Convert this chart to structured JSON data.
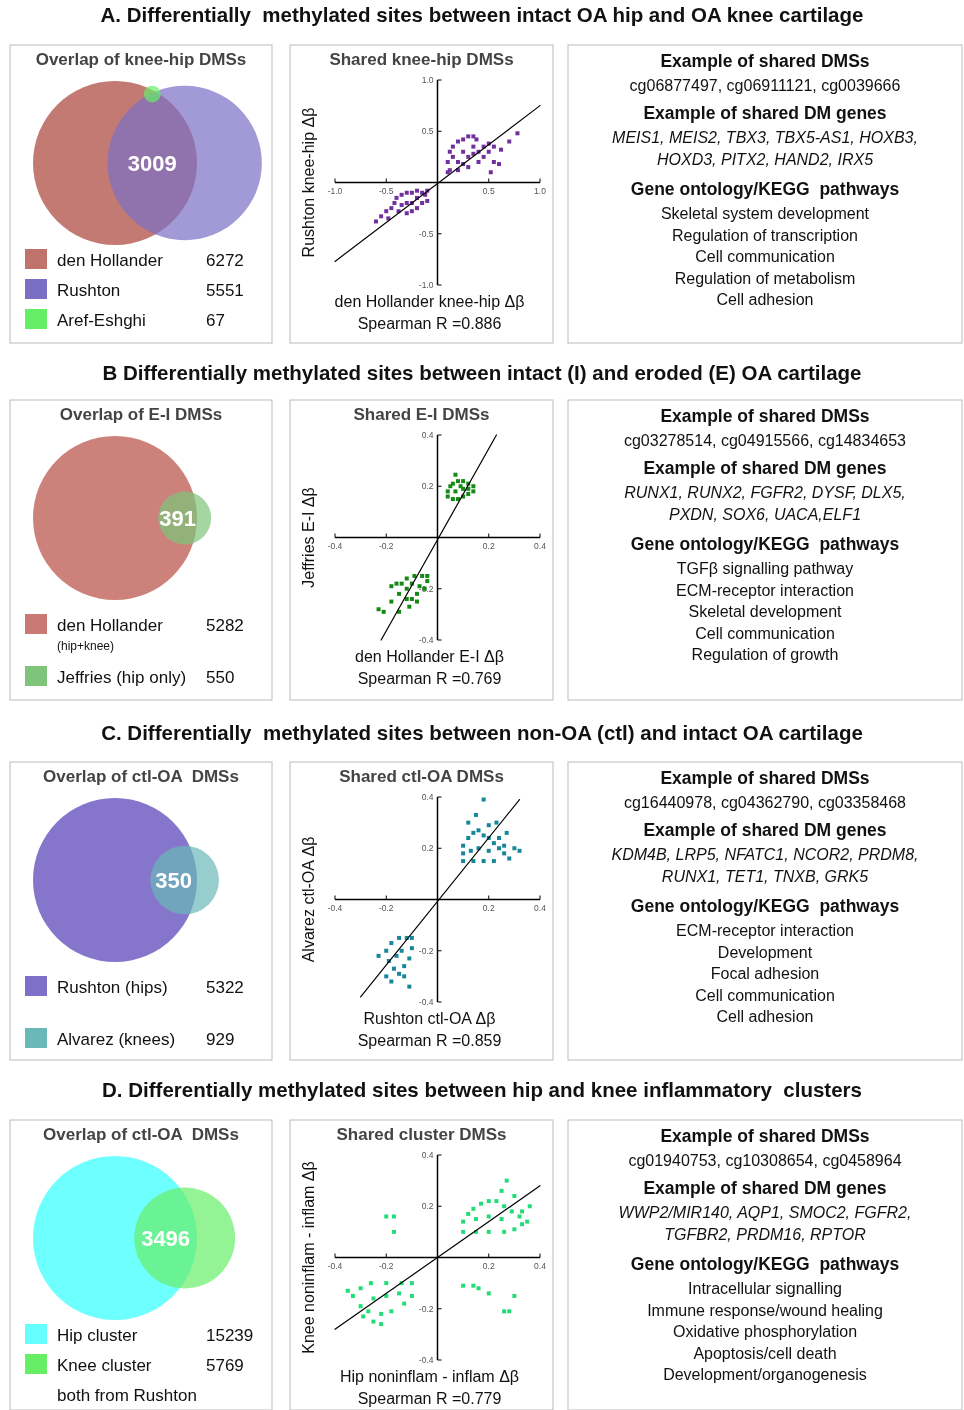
{
  "chart_data": [
    {
      "type": "other",
      "title": "A. Differentially  methylated sites between intact OA hip and OA knee cartilage"
    },
    {
      "type": "other",
      "title": "Overlap of knee-hip DMSs",
      "categories": [
        "den Hollander",
        "Rushton",
        "Aref-Eshghi"
      ],
      "values": [
        6272,
        5551,
        67
      ],
      "data_labels": true,
      "colors": [
        "#c0736b",
        "#7b6fc4",
        "#66ee66"
      ],
      "annotations": [
        "3009"
      ]
    },
    {
      "type": "scatter",
      "title": "Shared knee-hip DMSs",
      "xlabel": "den Hollander knee-hip Δβ",
      "ylabel": "Rushton knee-hip Δβ",
      "annotations": [
        "Spearman R =0.886"
      ],
      "xlim": [
        -1,
        1
      ],
      "ylim": [
        -1,
        1
      ],
      "xticks": [
        {
          "value": -1,
          "label": "-1.0"
        },
        -0.5,
        0.5,
        {
          "value": 1,
          "label": "1.0"
        }
      ],
      "yticks": [
        {
          "value": -1,
          "label": "-1.0"
        },
        -0.5,
        0.5,
        {
          "value": 1,
          "label": "1.0"
        }
      ],
      "marker": "square",
      "series": [
        {
          "color": "#7030a0",
          "x": [
            0.12,
            0.1,
            0.12,
            0.15,
            0.2,
            0.25,
            0.3,
            0.35,
            0.38,
            0.15,
            0.2,
            0.2,
            0.25,
            0.3,
            0.3,
            0.35,
            0.4,
            0.45,
            0.45,
            0.5,
            0.5,
            0.55,
            0.55,
            0.6,
            0.52,
            0.62,
            0.7,
            0.78,
            0.4,
            0.1,
            0.25,
            0.35,
            -0.1,
            -0.15,
            -0.2,
            -0.25,
            -0.3,
            -0.35,
            -0.4,
            -0.42,
            -0.45,
            -0.38,
            -0.3,
            -0.25,
            -0.2,
            -0.15,
            -0.1,
            -0.12,
            -0.2,
            -0.3,
            -0.35,
            -0.5,
            -0.55,
            -0.6,
            -0.48,
            -0.25
          ],
          "values": [
            0.12,
            0.2,
            0.3,
            0.35,
            0.4,
            0.42,
            0.45,
            0.45,
            0.42,
            0.25,
            0.2,
            0.12,
            0.3,
            0.25,
            0.15,
            0.35,
            0.3,
            0.35,
            0.25,
            0.38,
            0.3,
            0.35,
            0.2,
            0.18,
            0.1,
            0.32,
            0.4,
            0.48,
            0.2,
            0.1,
            0.18,
            0.28,
            -0.08,
            -0.1,
            -0.08,
            -0.1,
            -0.1,
            -0.12,
            -0.15,
            -0.2,
            -0.25,
            -0.28,
            -0.3,
            -0.28,
            -0.25,
            -0.2,
            -0.18,
            -0.12,
            -0.15,
            -0.2,
            -0.22,
            -0.28,
            -0.33,
            -0.38,
            -0.35,
            -0.2
          ]
        },
        {
          "type": "line",
          "marker": "none",
          "color": "#000000",
          "x": [
            -1,
            1
          ],
          "values": [
            -0.77,
            0.75
          ]
        }
      ]
    },
    {
      "type": "other",
      "title": "Example of shared DMSs",
      "annotations": [
        "cg06877497, cg06911121, cg0039666"
      ]
    },
    {
      "type": "other",
      "title": "Example of shared DM genes",
      "annotations": [
        "MEIS1, MEIS2, TBX3, TBX5-AS1, HOXB3,",
        "HOXD3, PITX2, HAND2, IRX5"
      ]
    },
    {
      "type": "other",
      "title": "Gene ontology/KEGG  pathways",
      "annotations": [
        "Skeletal system development",
        "Regulation of transcription",
        "Cell communication",
        "Regulation of metabolism",
        "Cell adhesion"
      ]
    },
    {
      "type": "other",
      "title": "B Differentially methylated sites between intact (I) and eroded (E) OA cartilage"
    },
    {
      "type": "other",
      "title": "Overlap of E-I DMSs",
      "categories": [
        "den Hollander\n(hip+knee)",
        "Jeffries (hip only)"
      ],
      "values": [
        5282,
        550
      ],
      "data_labels": true,
      "colors": [
        "#c97b73",
        "#7ec47a"
      ],
      "annotations": [
        "391"
      ]
    },
    {
      "type": "scatter",
      "title": "Shared E-I DMSs",
      "xlabel": "den Hollander E-I Δβ",
      "ylabel": "Jeffries E-I Δβ",
      "annotations": [
        "Spearman R =0.769"
      ],
      "xlim": [
        -0.4,
        0.4
      ],
      "ylim": [
        -0.4,
        0.4
      ],
      "xticks": [
        -0.4,
        -0.2,
        0.2,
        0.4
      ],
      "yticks": [
        -0.4,
        -0.2,
        0.2,
        0.4
      ],
      "marker": "square",
      "series": [
        {
          "color": "#138a13",
          "x": [
            0.04,
            0.04,
            0.05,
            0.06,
            0.08,
            0.1,
            0.12,
            0.14,
            0.14,
            0.12,
            0.1,
            0.08,
            0.06,
            0.07,
            0.1,
            0.12,
            0.07,
            0.09,
            -0.04,
            -0.06,
            -0.09,
            -0.12,
            -0.14,
            -0.16,
            -0.18,
            -0.15,
            -0.12,
            -0.1,
            -0.08,
            -0.05,
            -0.04,
            -0.1,
            -0.12,
            -0.07,
            -0.11,
            -0.15,
            -0.18,
            -0.21,
            -0.23,
            -0.08
          ],
          "values": [
            0.16,
            0.18,
            0.2,
            0.21,
            0.22,
            0.22,
            0.21,
            0.2,
            0.18,
            0.17,
            0.16,
            0.15,
            0.15,
            0.18,
            0.19,
            0.19,
            0.245,
            0.2,
            -0.15,
            -0.15,
            -0.15,
            -0.16,
            -0.18,
            -0.18,
            -0.19,
            -0.22,
            -0.24,
            -0.24,
            -0.22,
            -0.2,
            -0.17,
            -0.18,
            -0.2,
            -0.19,
            -0.27,
            -0.29,
            -0.25,
            -0.29,
            -0.28,
            -0.25
          ]
        },
        {
          "type": "line",
          "marker": "none",
          "color": "#000000",
          "x": [
            -0.22,
            0.23
          ],
          "values": [
            -0.4,
            0.4
          ]
        }
      ]
    },
    {
      "type": "other",
      "title": "Example of shared DMSs",
      "annotations": [
        "cg03278514, cg04915566, cg14834653"
      ]
    },
    {
      "type": "other",
      "title": "Example of shared DM genes",
      "annotations": [
        "RUNX1, RUNX2, FGFR2, DYSF, DLX5,",
        "PXDN, SOX6, UACA,ELF1"
      ]
    },
    {
      "type": "other",
      "title": "Gene ontology/KEGG  pathways",
      "annotations": [
        "TGFβ signalling pathway",
        "ECM-receptor interaction",
        "Skeletal development",
        "Cell communication",
        "Regulation of growth"
      ]
    },
    {
      "type": "other",
      "title": "C. Differentially  methylated sites between non-OA (ctl) and intact OA cartilage"
    },
    {
      "type": "other",
      "title": "Overlap of ctl-OA  DMSs",
      "categories": [
        "Rushton (hips)",
        "Alvarez (knees)"
      ],
      "values": [
        5322,
        929
      ],
      "data_labels": true,
      "colors": [
        "#7e6fc8",
        "#6bb8b8"
      ],
      "annotations": [
        "350"
      ]
    },
    {
      "type": "scatter",
      "title": "Shared ctl-OA DMSs",
      "xlabel": "Rushton ctl-OA Δβ",
      "ylabel": "Alvarez ctl-OA Δβ",
      "annotations": [
        "Spearman R =0.859"
      ],
      "xlim": [
        -0.4,
        0.4
      ],
      "ylim": [
        -0.4,
        0.4
      ],
      "xticks": [
        -0.4,
        -0.2,
        0.2,
        0.4
      ],
      "yticks": [
        -0.4,
        -0.2,
        0.2,
        0.4
      ],
      "marker": "square",
      "series": [
        {
          "color": "#17869a",
          "x": [
            0.1,
            0.1,
            0.1,
            0.12,
            0.14,
            0.16,
            0.18,
            0.2,
            0.22,
            0.24,
            0.26,
            0.28,
            0.22,
            0.18,
            0.14,
            0.13,
            0.16,
            0.2,
            0.24,
            0.18,
            0.15,
            0.12,
            0.2,
            0.23,
            0.27,
            0.3,
            0.32,
            0.26,
            -0.1,
            -0.12,
            -0.15,
            -0.18,
            -0.2,
            -0.19,
            -0.17,
            -0.15,
            -0.13,
            -0.11,
            -0.1,
            -0.14,
            -0.16,
            -0.23,
            -0.2,
            -0.11,
            -0.18,
            -0.13
          ],
          "values": [
            0.15,
            0.18,
            0.21,
            0.24,
            0.26,
            0.27,
            0.25,
            0.24,
            0.22,
            0.2,
            0.18,
            0.16,
            0.15,
            0.15,
            0.15,
            0.19,
            0.2,
            0.19,
            0.24,
            0.39,
            0.33,
            0.3,
            0.29,
            0.3,
            0.26,
            0.2,
            0.19,
            0.21,
            -0.15,
            -0.15,
            -0.15,
            -0.17,
            -0.2,
            -0.24,
            -0.27,
            -0.29,
            -0.26,
            -0.23,
            -0.19,
            -0.2,
            -0.22,
            -0.22,
            -0.3,
            -0.34,
            -0.32,
            -0.3
          ]
        },
        {
          "type": "line",
          "marker": "none",
          "color": "#000000",
          "x": [
            -0.3,
            0.32
          ],
          "values": [
            -0.38,
            0.39
          ]
        }
      ]
    },
    {
      "type": "other",
      "title": "Example of shared DMSs",
      "annotations": [
        "cg16440978, cg04362790, cg03358468"
      ]
    },
    {
      "type": "other",
      "title": "Example of shared DM genes",
      "annotations": [
        "KDM4B, LRP5, NFATC1, NCOR2, PRDM8,",
        "RUNX1, TET1, TNXB, GRK5"
      ]
    },
    {
      "type": "other",
      "title": "Gene ontology/KEGG  pathways",
      "annotations": [
        "ECM-receptor interaction",
        "Development",
        "Focal adhesion",
        "Cell communication",
        "Cell adhesion"
      ]
    },
    {
      "type": "other",
      "title": "D. Differentially methylated sites between hip and knee inflammatory  clusters"
    },
    {
      "type": "other",
      "title": "Overlap of ctl-OA  DMSs",
      "categories": [
        "Hip cluster",
        "Knee cluster"
      ],
      "values": [
        15239,
        5769
      ],
      "data_labels": true,
      "colors": [
        "#66ffff",
        "#66ee66"
      ],
      "annotations": [
        "3496",
        "both from Rushton"
      ]
    },
    {
      "type": "scatter",
      "title": "Shared cluster  DMSs",
      "xlabel": "Hip noninflam - inflam Δβ",
      "ylabel": "Knee noninflam - inflam Δβ",
      "annotations": [
        "Spearman R =0.779"
      ],
      "xlim": [
        -0.4,
        0.4
      ],
      "ylim": [
        -0.4,
        0.4
      ],
      "xticks": [
        -0.4,
        -0.2,
        0.2,
        0.4
      ],
      "yticks": [
        -0.4,
        -0.2,
        0.2,
        0.4
      ],
      "marker": "square",
      "series": [
        {
          "color": "#22dd77",
          "x": [
            0.1,
            0.1,
            0.12,
            0.14,
            0.17,
            0.2,
            0.23,
            0.26,
            0.29,
            0.32,
            0.33,
            0.3,
            0.26,
            0.2,
            0.15,
            0.15,
            0.2,
            0.25,
            0.27,
            0.25,
            0.3,
            0.33,
            0.36,
            0.35,
            -0.1,
            -0.14,
            -0.2,
            -0.26,
            -0.3,
            -0.33,
            -0.3,
            -0.27,
            -0.22,
            -0.18,
            -0.13,
            -0.1,
            -0.2,
            -0.25,
            -0.15,
            -0.35,
            -0.25,
            -0.29,
            -0.22,
            -0.17,
            -0.17,
            -0.2,
            0.1,
            0.14,
            0.16,
            0.2,
            0.3,
            0.26,
            0.28
          ],
          "values": [
            0.1,
            0.14,
            0.17,
            0.19,
            0.21,
            0.22,
            0.22,
            0.2,
            0.18,
            0.16,
            0.13,
            0.11,
            0.1,
            0.1,
            0.1,
            0.15,
            0.16,
            0.15,
            0.3,
            0.26,
            0.24,
            0.18,
            0.2,
            0.14,
            -0.1,
            -0.1,
            -0.1,
            -0.1,
            -0.12,
            -0.15,
            -0.19,
            -0.21,
            -0.22,
            -0.21,
            -0.18,
            -0.15,
            -0.15,
            -0.16,
            -0.14,
            -0.13,
            -0.25,
            -0.23,
            -0.26,
            0.16,
            0.1,
            0.16,
            -0.11,
            -0.11,
            -0.12,
            -0.14,
            -0.15,
            -0.21,
            -0.21
          ]
        },
        {
          "type": "line",
          "marker": "none",
          "color": "#000000",
          "x": [
            -0.4,
            0.4
          ],
          "values": [
            -0.28,
            0.28
          ]
        }
      ]
    },
    {
      "type": "other",
      "title": "Example of shared DMSs",
      "annotations": [
        "cg01940753, cg10308654, cg0458964"
      ]
    },
    {
      "type": "other",
      "title": "Example of shared DM genes",
      "annotations": [
        "WWP2/MIR140, AQP1, SMOC2, FGFR2,",
        "TGFBR2, PRDM16, RPTOR"
      ]
    },
    {
      "type": "other",
      "title": "Gene ontology/KEGG  pathways",
      "annotations": [
        "Intracellular signalling",
        "Immune response/wound healing",
        "Oxidative phosphorylation",
        "Apoptosis/cell death",
        "Development/organogenesis"
      ]
    }
  ]
}
